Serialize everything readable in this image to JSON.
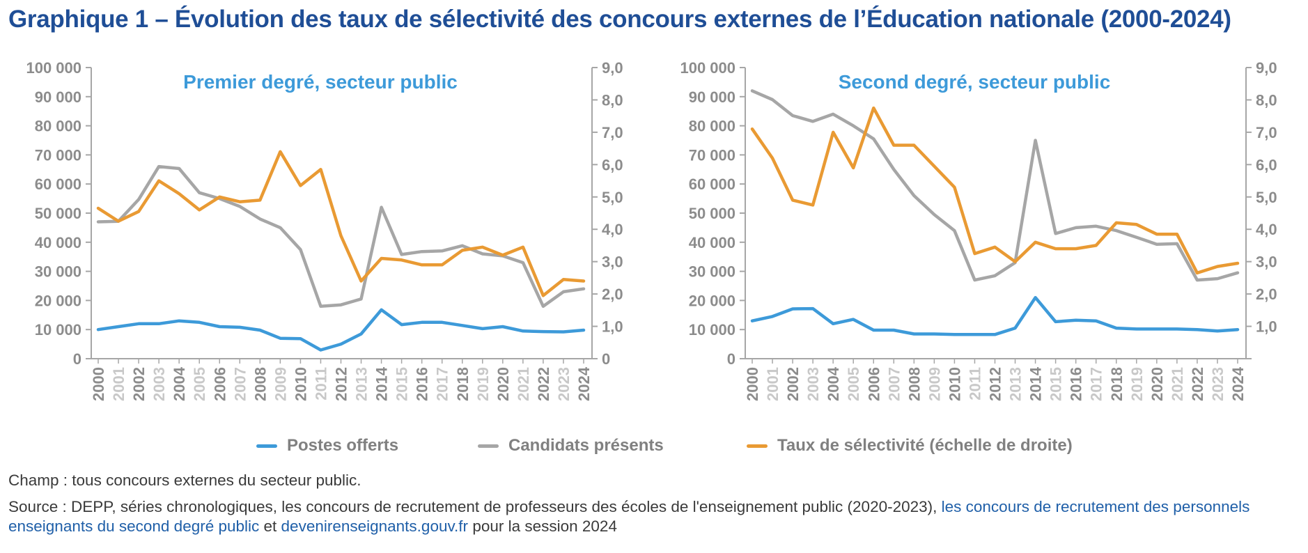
{
  "title": "Graphique 1 – Évolution des taux de sélectivité des concours externes de l’Éducation nationale (2000-2024)",
  "colors": {
    "postes": "#3d9ad9",
    "candidats": "#a6a6a6",
    "taux": "#e99a33",
    "axis": "#a6a6a6",
    "ticks": "#8c8c8c"
  },
  "legend": [
    {
      "key": "postes",
      "label": "Postes offerts"
    },
    {
      "key": "candidats",
      "label": "Candidats présents"
    },
    {
      "key": "taux",
      "label": "Taux de sélectivité (échelle de droite)"
    }
  ],
  "chart_data": [
    {
      "type": "line",
      "subtitle": "Premier degré, secteur public",
      "x": [
        "2000",
        "2001",
        "2002",
        "2003",
        "2004",
        "2005",
        "2006",
        "2007",
        "2008",
        "2009",
        "2010",
        "2011",
        "2012",
        "2013",
        "2014",
        "2015",
        "2016",
        "2017",
        "2018",
        "2019",
        "2020",
        "2021",
        "2022",
        "2023",
        "2024"
      ],
      "x_labels_dim": [
        "2001",
        "2003",
        "2005",
        "2007",
        "2009",
        "2011",
        "2013",
        "2015",
        "2017",
        "2019",
        "2021",
        "2023"
      ],
      "y_left_range": [
        0,
        100000
      ],
      "y_left_ticks": [
        "0",
        "10 000",
        "20 000",
        "30 000",
        "40 000",
        "50 000",
        "60 000",
        "70 000",
        "80 000",
        "90 000",
        "100 000"
      ],
      "y_right_range": [
        0,
        9
      ],
      "y_right_ticks": [
        "0",
        "1,0",
        "2,0",
        "3,0",
        "4,0",
        "5,0",
        "6,0",
        "7,0",
        "8,0",
        "9,0"
      ],
      "series": [
        {
          "key": "postes",
          "name": "Postes offerts",
          "axis": "left",
          "values": [
            10000,
            11000,
            12000,
            12000,
            13000,
            12500,
            11000,
            10800,
            9800,
            7000,
            6900,
            3000,
            5000,
            8500,
            16800,
            11700,
            12500,
            12500,
            11400,
            10300,
            11000,
            9500,
            9300,
            9200,
            9800
          ]
        },
        {
          "key": "candidats",
          "name": "Candidats présents",
          "axis": "left",
          "values": [
            47000,
            47200,
            54700,
            66000,
            65300,
            57000,
            55000,
            52300,
            48000,
            45000,
            37500,
            18000,
            18500,
            20500,
            52000,
            35800,
            36800,
            37000,
            38800,
            36000,
            35300,
            33000,
            18000,
            23000,
            24000
          ]
        },
        {
          "key": "taux",
          "name": "Taux de sélectivité (échelle de droite)",
          "axis": "right",
          "values": [
            4.65,
            4.25,
            4.55,
            5.5,
            5.1,
            4.6,
            5.0,
            4.85,
            4.9,
            6.4,
            5.35,
            5.85,
            3.8,
            2.4,
            3.1,
            3.05,
            2.9,
            2.9,
            3.35,
            3.45,
            3.2,
            3.45,
            1.95,
            2.45,
            2.4
          ]
        }
      ]
    },
    {
      "type": "line",
      "subtitle": "Second degré, secteur public",
      "x": [
        "2000",
        "2001",
        "2002",
        "2003",
        "2004",
        "2005",
        "2006",
        "2007",
        "2008",
        "2009",
        "2010",
        "2011",
        "2012",
        "2013",
        "2014",
        "2015",
        "2016",
        "2017",
        "2018",
        "2019",
        "2020",
        "2021",
        "2022",
        "2023",
        "2024"
      ],
      "x_labels_dim": [
        "2001",
        "2003",
        "2005",
        "2007",
        "2009",
        "2011",
        "2013",
        "2015",
        "2017",
        "2019",
        "2021",
        "2023"
      ],
      "y_left_range": [
        0,
        100000
      ],
      "y_left_ticks": [
        "0",
        "10 000",
        "20 000",
        "30 000",
        "40 000",
        "50 000",
        "60 000",
        "70 000",
        "80 000",
        "90 000",
        "100 000"
      ],
      "y_right_range": [
        0,
        9
      ],
      "y_right_ticks": [
        "",
        "1,0",
        "2,0",
        "3,0",
        "4,0",
        "5,0",
        "6,0",
        "7,0",
        "8,0",
        "9,0"
      ],
      "series": [
        {
          "key": "postes",
          "name": "Postes offerts",
          "axis": "left",
          "values": [
            13000,
            14500,
            17100,
            17200,
            12000,
            13500,
            9800,
            9800,
            8500,
            8500,
            8300,
            8300,
            8300,
            10500,
            21000,
            12700,
            13200,
            13000,
            10500,
            10200,
            10200,
            10200,
            10000,
            9500,
            10000
          ]
        },
        {
          "key": "candidats",
          "name": "Candidats présents",
          "axis": "left",
          "values": [
            92000,
            89000,
            83500,
            81500,
            84000,
            80000,
            75500,
            65000,
            56000,
            49500,
            44000,
            27000,
            28500,
            33000,
            75000,
            43000,
            45000,
            45500,
            44000,
            41700,
            39300,
            39500,
            27000,
            27500,
            29500
          ]
        },
        {
          "key": "taux",
          "name": "Taux de sélectivité (échelle de droite)",
          "axis": "right",
          "values": [
            7.1,
            6.2,
            4.9,
            4.75,
            7.0,
            5.9,
            7.75,
            6.6,
            6.6,
            5.95,
            5.3,
            3.25,
            3.45,
            3.0,
            3.6,
            3.4,
            3.4,
            3.5,
            4.2,
            4.15,
            3.85,
            3.85,
            2.65,
            2.85,
            2.95
          ]
        }
      ]
    }
  ],
  "notes": {
    "champ": "Champ : tous concours externes du secteur public.",
    "source_text": "Source : DEPP, séries chronologiques, les concours de recrutement de professeurs des écoles de l'enseignement public (2020-2023), ",
    "source_link1": "les concours de recru­tement des personnels enseignants du second degré public",
    "source_and": " et ",
    "source_link2": "devenirenseignants.gouv.fr",
    "source_end": " pour la session 2024"
  }
}
